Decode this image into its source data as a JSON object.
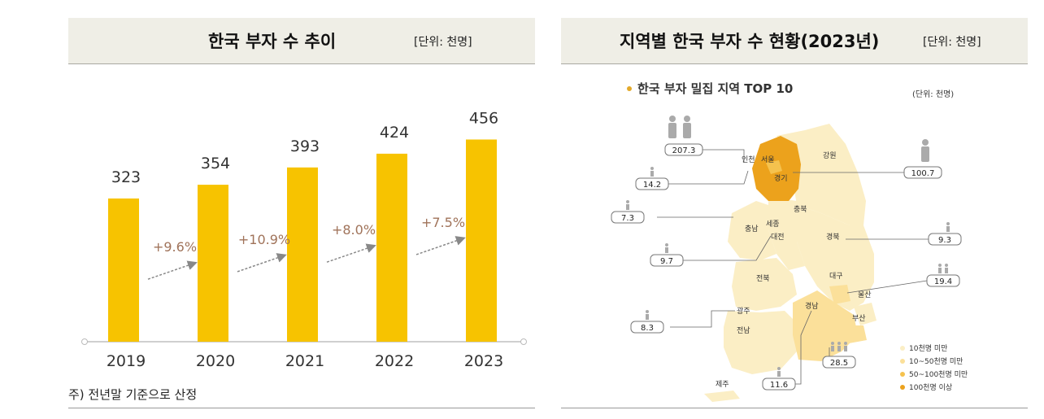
{
  "left": {
    "title": "한국 부자 수 추이",
    "unit": "[단위: 천명]",
    "footnote": "주) 전년말 기준으로 산정"
  },
  "right": {
    "title": "지역별 한국 부자 수 현황(2023년)",
    "unit": "[단위: 천명]",
    "map_heading": "한국 부자 밀집 지역 TOP 10",
    "map_unit": "(단위: 천명)"
  },
  "chart_data": [
    {
      "type": "bar",
      "categories": [
        "2019",
        "2020",
        "2021",
        "2022",
        "2023"
      ],
      "values": [
        323,
        354,
        393,
        424,
        456
      ],
      "growth_labels": [
        "+9.6%",
        "+10.9%",
        "+8.0%",
        "+7.5%"
      ],
      "title": "한국 부자 수 추이",
      "bar_color": "#f7c300",
      "growth_color": "#a0735a"
    }
  ],
  "map": {
    "regions": [
      "인천",
      "서울",
      "경기",
      "강원",
      "충북",
      "충남",
      "세종",
      "대전",
      "경북",
      "전북",
      "대구",
      "울산",
      "경남",
      "부산",
      "광주",
      "전남",
      "제주"
    ],
    "callouts": [
      {
        "name": "서울",
        "value": "207.3"
      },
      {
        "name": "인천",
        "value": "14.2"
      },
      {
        "name": "충남",
        "value": "7.3"
      },
      {
        "name": "대전",
        "value": "9.7"
      },
      {
        "name": "광주",
        "value": "8.3"
      },
      {
        "name": "경남",
        "value": "11.6"
      },
      {
        "name": "부산",
        "value": "28.5"
      },
      {
        "name": "경기",
        "value": "100.7"
      },
      {
        "name": "경북",
        "value": "9.3"
      },
      {
        "name": "대구",
        "value": "19.4"
      }
    ],
    "legend": [
      {
        "label": "10천명 미만",
        "color": "#fbeec5"
      },
      {
        "label": "10~50천명 미만",
        "color": "#fbe09a"
      },
      {
        "label": "50~100천명 미만",
        "color": "#f5c24e"
      },
      {
        "label": "100천명 이상",
        "color": "#eca21c"
      }
    ]
  }
}
